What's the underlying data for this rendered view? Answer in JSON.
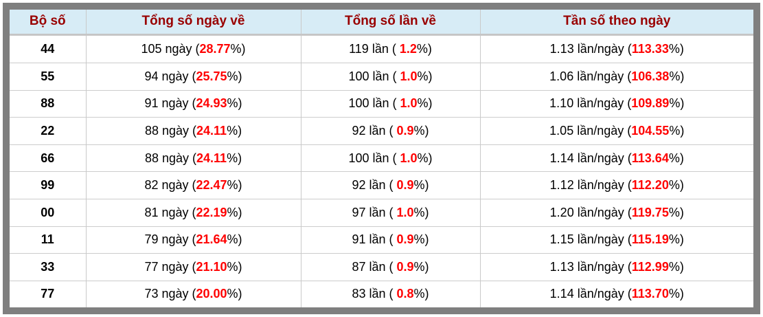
{
  "colors": {
    "frame_border": "#7f7f7f",
    "header_bg": "#d7ecf6",
    "header_text": "#990000",
    "body_text": "#000000",
    "percent_red": "#ff0000",
    "grid_line": "#cccccc"
  },
  "table": {
    "columns": [
      {
        "label": "Bộ số"
      },
      {
        "label": "Tổng số ngày về"
      },
      {
        "label": "Tổng số lần về"
      },
      {
        "label": "Tần số theo ngày"
      }
    ],
    "rows": [
      {
        "pair": "44",
        "days": {
          "pre": "105 ngày (",
          "value": "28.77",
          "post": "%)"
        },
        "times": {
          "pre": "119 lần ( ",
          "value": "1.2",
          "post": "%)"
        },
        "freq": {
          "pre": "1.13 lần/ngày (",
          "value": "113.33",
          "post": "%)"
        }
      },
      {
        "pair": "55",
        "days": {
          "pre": "94 ngày (",
          "value": "25.75",
          "post": "%)"
        },
        "times": {
          "pre": "100 lần ( ",
          "value": "1.0",
          "post": "%)"
        },
        "freq": {
          "pre": "1.06 lần/ngày (",
          "value": "106.38",
          "post": "%)"
        }
      },
      {
        "pair": "88",
        "days": {
          "pre": "91 ngày (",
          "value": "24.93",
          "post": "%)"
        },
        "times": {
          "pre": "100 lần ( ",
          "value": "1.0",
          "post": "%)"
        },
        "freq": {
          "pre": "1.10 lần/ngày (",
          "value": "109.89",
          "post": "%)"
        }
      },
      {
        "pair": "22",
        "days": {
          "pre": "88 ngày (",
          "value": "24.11",
          "post": "%)"
        },
        "times": {
          "pre": "92 lần ( ",
          "value": "0.9",
          "post": "%)"
        },
        "freq": {
          "pre": "1.05 lần/ngày (",
          "value": "104.55",
          "post": "%)"
        }
      },
      {
        "pair": "66",
        "days": {
          "pre": "88 ngày (",
          "value": "24.11",
          "post": "%)"
        },
        "times": {
          "pre": "100 lần ( ",
          "value": "1.0",
          "post": "%)"
        },
        "freq": {
          "pre": "1.14 lần/ngày (",
          "value": "113.64",
          "post": "%)"
        }
      },
      {
        "pair": "99",
        "days": {
          "pre": "82 ngày (",
          "value": "22.47",
          "post": "%)"
        },
        "times": {
          "pre": "92 lần ( ",
          "value": "0.9",
          "post": "%)"
        },
        "freq": {
          "pre": "1.12 lần/ngày (",
          "value": "112.20",
          "post": "%)"
        }
      },
      {
        "pair": "00",
        "days": {
          "pre": "81 ngày (",
          "value": "22.19",
          "post": "%)"
        },
        "times": {
          "pre": "97 lần ( ",
          "value": "1.0",
          "post": "%)"
        },
        "freq": {
          "pre": "1.20 lần/ngày (",
          "value": "119.75",
          "post": "%)"
        }
      },
      {
        "pair": "11",
        "days": {
          "pre": "79 ngày (",
          "value": "21.64",
          "post": "%)"
        },
        "times": {
          "pre": "91 lần ( ",
          "value": "0.9",
          "post": "%)"
        },
        "freq": {
          "pre": "1.15 lần/ngày (",
          "value": "115.19",
          "post": "%)"
        }
      },
      {
        "pair": "33",
        "days": {
          "pre": "77 ngày (",
          "value": "21.10",
          "post": "%)"
        },
        "times": {
          "pre": "87 lần ( ",
          "value": "0.9",
          "post": "%)"
        },
        "freq": {
          "pre": "1.13 lần/ngày (",
          "value": "112.99",
          "post": "%)"
        }
      },
      {
        "pair": "77",
        "days": {
          "pre": "73 ngày (",
          "value": "20.00",
          "post": "%)"
        },
        "times": {
          "pre": "83 lần ( ",
          "value": "0.8",
          "post": "%)"
        },
        "freq": {
          "pre": "1.14 lần/ngày (",
          "value": "113.70",
          "post": "%)"
        }
      }
    ]
  }
}
